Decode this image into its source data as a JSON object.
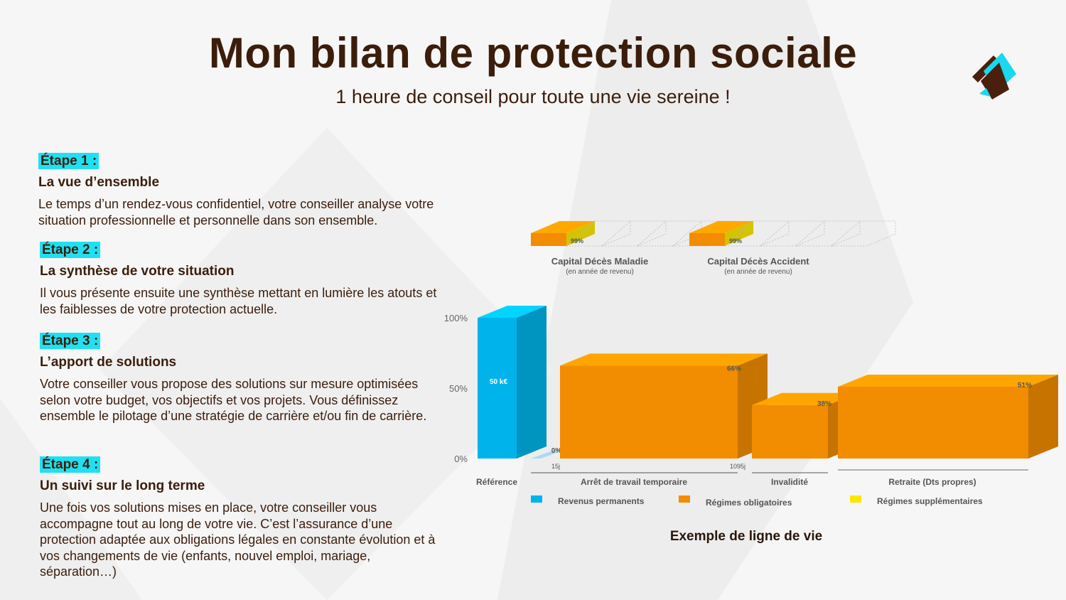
{
  "header": {
    "title": "Mon bilan de protection sociale",
    "subtitle": "1 heure de conseil pour toute une vie sereine !"
  },
  "steps": [
    {
      "tag": "Étape 1 :",
      "heading": "La vue d’ensemble",
      "body": "Le temps d’un rendez-vous confidentiel, votre conseiller analyse votre situation professionnelle et personnelle dans son ensemble."
    },
    {
      "tag": "Étape 2 :",
      "heading": "La synthèse de votre situation",
      "body": "Il vous présente ensuite une synthèse mettant en lumière les atouts et les faiblesses de votre protection actuelle."
    },
    {
      "tag": "Étape 3 :",
      "heading": "L’apport de solutions",
      "body": "Votre conseiller vous propose des solutions sur mesure optimisées selon votre budget, vos objectifs et vos projets. Vous définissez ensemble le pilotage d’une stratégie de carrière et/ou fin de carrière."
    },
    {
      "tag": "Étape 4 :",
      "heading": "Un suivi sur le long terme",
      "body": "Une fois vos solutions mises en place, votre conseiller vous accompagne tout au long de votre vie. C’est l’assurance d’une protection adaptée aux obligations légales en constante évolution et à vos changements de vie (enfants, nouvel emploi, mariage, séparation…)"
    }
  ],
  "chart_caption": "Exemple de ligne de vie",
  "chart_data": {
    "type": "bar",
    "ylim": [
      0,
      100
    ],
    "yticks": [
      "0%",
      "50%",
      "100%"
    ],
    "bars": [
      {
        "category": "Référence",
        "value": 100,
        "series": "Revenus permanents",
        "label": "50 k€"
      },
      {
        "category": "Arrêt de travail temporaire",
        "value": 0,
        "series": "Régimes obligatoires",
        "label": "0%",
        "range_start": "15j"
      },
      {
        "category": "Arrêt de travail temporaire",
        "value": 66,
        "series": "Régimes obligatoires",
        "label": "66%",
        "range_end": "1095j"
      },
      {
        "category": "Invalidité",
        "value": 38,
        "series": "Régimes obligatoires",
        "label": "38%"
      },
      {
        "category": "Retraite (Dts propres)",
        "value": 51,
        "series": "Régimes obligatoires",
        "label": "51%"
      }
    ],
    "capital": [
      {
        "name": "Capital Décès Maladie",
        "note": "(en année de revenu)",
        "value": "99%"
      },
      {
        "name": "Capital Décès Accident",
        "note": "(en année de revenu)",
        "value": "99%"
      }
    ],
    "legend": [
      {
        "name": "Revenus permanents",
        "color": "#00b4eb"
      },
      {
        "name": "Régimes obligatoires",
        "color": "#f28c00"
      },
      {
        "name": "Régimes supplémentaires",
        "color": "#ffe600"
      }
    ],
    "colors": {
      "blue": "#00b4eb",
      "orange": "#f28c00",
      "yellow": "#ffe600"
    }
  }
}
